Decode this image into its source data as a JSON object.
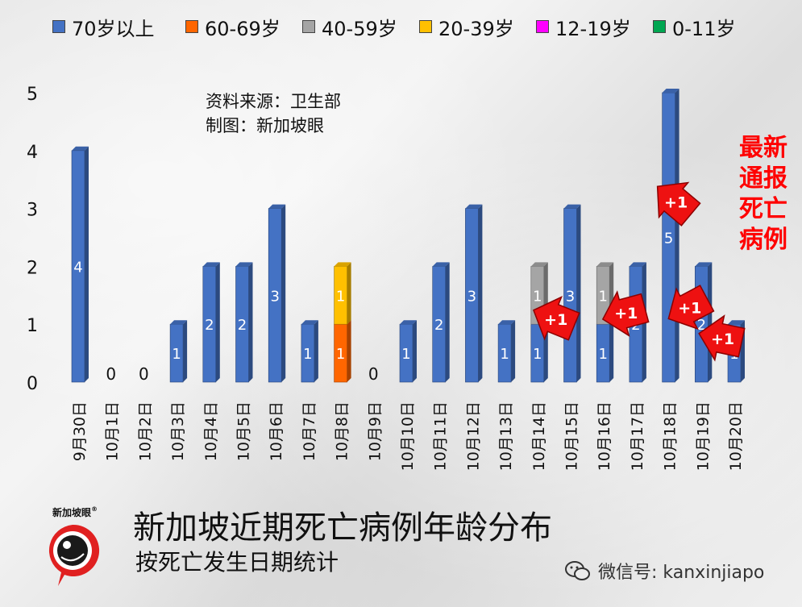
{
  "legend": [
    {
      "label": "70岁以上",
      "color": "#4472c4"
    },
    {
      "label": "60-69岁",
      "color": "#ff6600"
    },
    {
      "label": "40-59岁",
      "color": "#a5a5a5"
    },
    {
      "label": "20-39岁",
      "color": "#ffc000"
    },
    {
      "label": "12-19岁",
      "color": "#ff00ff"
    },
    {
      "label": "0-11岁",
      "color": "#00a651"
    }
  ],
  "source": {
    "line1": "资料来源：卫生部",
    "line2": "制图：新加坡眼"
  },
  "callout": {
    "lines": [
      "最新",
      "通报",
      "死亡",
      "病例"
    ],
    "color": "#ff0000",
    "marker_label": "+1"
  },
  "title": {
    "main": "新加坡近期死亡病例年龄分布",
    "sub": "按死亡发生日期统计"
  },
  "logo": {
    "text": "新加坡眼",
    "registered": "®"
  },
  "wechat": {
    "label": "微信号: kanxinjiapo"
  },
  "chart_data": {
    "type": "bar",
    "stacked": true,
    "title": "新加坡近期死亡病例年龄分布",
    "subtitle": "按死亡发生日期统计",
    "ylim": [
      0,
      5
    ],
    "yticks": [
      "0",
      "1",
      "2",
      "3",
      "4",
      "5"
    ],
    "grid": false,
    "legend_position": "top",
    "categories": [
      "9月30日",
      "10月1日",
      "10月2日",
      "10月3日",
      "10月4日",
      "10月5日",
      "10月6日",
      "10月7日",
      "10月8日",
      "10月9日",
      "10月10日",
      "10月11日",
      "10月12日",
      "10月13日",
      "10月14日",
      "10月15日",
      "10月16日",
      "10月17日",
      "10月18日",
      "10月19日",
      "10月20日"
    ],
    "totals": [
      4,
      0,
      0,
      1,
      2,
      2,
      3,
      1,
      2,
      0,
      1,
      2,
      3,
      1,
      2,
      3,
      2,
      2,
      5,
      2,
      1
    ],
    "series": [
      {
        "name": "70岁以上",
        "color": "#4472c4",
        "values": [
          4,
          0,
          0,
          1,
          2,
          2,
          3,
          1,
          0,
          0,
          1,
          2,
          3,
          1,
          1,
          3,
          1,
          2,
          5,
          2,
          1
        ]
      },
      {
        "name": "60-69岁",
        "color": "#ff6600",
        "values": [
          0,
          0,
          0,
          0,
          0,
          0,
          0,
          0,
          1,
          0,
          0,
          0,
          0,
          0,
          0,
          0,
          0,
          0,
          0,
          0,
          0
        ]
      },
      {
        "name": "40-59岁",
        "color": "#a5a5a5",
        "values": [
          0,
          0,
          0,
          0,
          0,
          0,
          0,
          0,
          0,
          0,
          0,
          0,
          0,
          0,
          1,
          0,
          1,
          0,
          0,
          0,
          0
        ]
      },
      {
        "name": "20-39岁",
        "color": "#ffc000",
        "values": [
          0,
          0,
          0,
          0,
          0,
          0,
          0,
          0,
          1,
          0,
          0,
          0,
          0,
          0,
          0,
          0,
          0,
          0,
          0,
          0,
          0
        ]
      },
      {
        "name": "12-19岁",
        "color": "#ff00ff",
        "values": [
          0,
          0,
          0,
          0,
          0,
          0,
          0,
          0,
          0,
          0,
          0,
          0,
          0,
          0,
          0,
          0,
          0,
          0,
          0,
          0,
          0
        ]
      },
      {
        "name": "0-11岁",
        "color": "#00a651",
        "values": [
          0,
          0,
          0,
          0,
          0,
          0,
          0,
          0,
          0,
          0,
          0,
          0,
          0,
          0,
          0,
          0,
          0,
          0,
          0,
          0,
          0
        ]
      }
    ],
    "annotations": [
      {
        "category": "10月15日",
        "text": "+1"
      },
      {
        "category": "10月17日",
        "text": "+1"
      },
      {
        "category": "10月18日",
        "text": "+1"
      },
      {
        "category": "10月19日",
        "text": "+1"
      },
      {
        "category": "10月20日",
        "text": "+1"
      }
    ]
  }
}
